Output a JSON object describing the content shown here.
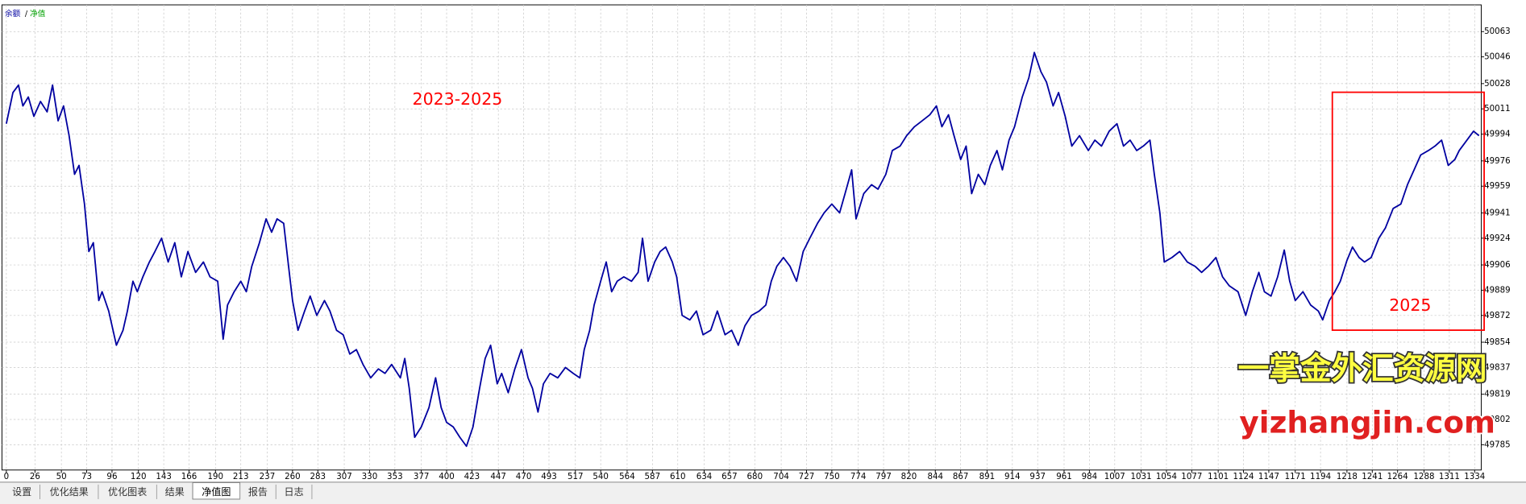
{
  "chart_data": {
    "type": "line",
    "legend": [
      {
        "label": "余额",
        "color": "#0000a0"
      },
      {
        "label": "净值",
        "color": "#00a000"
      }
    ],
    "legend_separator": "/",
    "x": [
      0,
      6,
      11,
      15,
      20,
      25,
      31,
      37,
      42,
      47,
      52,
      57,
      62,
      66,
      71,
      75,
      79,
      84,
      87,
      93,
      100,
      106,
      110,
      115,
      119,
      124,
      130,
      135,
      141,
      147,
      153,
      159,
      165,
      172,
      179,
      185,
      192,
      197,
      201,
      207,
      213,
      218,
      223,
      230,
      236,
      241,
      246,
      252,
      256,
      260,
      265,
      271,
      276,
      282,
      289,
      294,
      300,
      306,
      312,
      318,
      324,
      331,
      338,
      344,
      350,
      358,
      362,
      366,
      371,
      377,
      384,
      390,
      395,
      400,
      406,
      412,
      418,
      424,
      430,
      435,
      440,
      446,
      450,
      456,
      462,
      468,
      474,
      478,
      483,
      488,
      494,
      501,
      508,
      515,
      521,
      525,
      530,
      534,
      540,
      545,
      550,
      555,
      561,
      568,
      574,
      578,
      583,
      589,
      594,
      599,
      605,
      609,
      614,
      621,
      627,
      633,
      640,
      646,
      653,
      659,
      665,
      671,
      677,
      684,
      690,
      695,
      700,
      706,
      712,
      718,
      724,
      730,
      737,
      743,
      750,
      757,
      762,
      768,
      772,
      779,
      786,
      792,
      799,
      805,
      812,
      818,
      825,
      832,
      839,
      845,
      850,
      856,
      861,
      867,
      872,
      877,
      883,
      889,
      894,
      900,
      905,
      911,
      916,
      923,
      929,
      934,
      940,
      945,
      951,
      956,
      962,
      968,
      975,
      983,
      989,
      995,
      1002,
      1009,
      1015,
      1021,
      1027,
      1033,
      1039,
      1043,
      1048,
      1052,
      1059,
      1066,
      1073,
      1080,
      1086,
      1092,
      1099,
      1105,
      1111,
      1119,
      1126,
      1132,
      1138,
      1143,
      1149,
      1155,
      1161,
      1166,
      1171,
      1178,
      1185,
      1192,
      1196,
      1202,
      1207,
      1212,
      1218,
      1223,
      1229,
      1234,
      1240,
      1247,
      1253,
      1260,
      1267,
      1273,
      1279,
      1285,
      1292,
      1298,
      1304,
      1310,
      1316,
      1320,
      1327,
      1333,
      1338
    ],
    "series": [
      {
        "name": "余额",
        "color": "#0000a0",
        "values": [
          50001,
          50022,
          50027,
          50013,
          50019,
          50006,
          50016,
          50009,
          50027,
          50003,
          50013,
          49993,
          49967,
          49973,
          49947,
          49915,
          49921,
          49882,
          49888,
          49875,
          49852,
          49862,
          49875,
          49895,
          49888,
          49898,
          49908,
          49915,
          49924,
          49908,
          49921,
          49898,
          49915,
          49901,
          49908,
          49898,
          49895,
          49856,
          49879,
          49888,
          49895,
          49888,
          49905,
          49921,
          49937,
          49928,
          49937,
          49934,
          49908,
          49882,
          49862,
          49875,
          49885,
          49872,
          49882,
          49875,
          49862,
          49859,
          49846,
          49849,
          49839,
          49830,
          49836,
          49833,
          49839,
          49830,
          49843,
          49823,
          49790,
          49797,
          49810,
          49830,
          49810,
          49800,
          49797,
          49790,
          49784,
          49797,
          49823,
          49843,
          49852,
          49826,
          49833,
          49820,
          49836,
          49849,
          49830,
          49823,
          49807,
          49826,
          49833,
          49830,
          49837,
          49833,
          49830,
          49849,
          49862,
          49879,
          49895,
          49908,
          49888,
          49895,
          49898,
          49895,
          49901,
          49924,
          49895,
          49908,
          49915,
          49918,
          49908,
          49898,
          49872,
          49869,
          49875,
          49859,
          49862,
          49875,
          49859,
          49862,
          49852,
          49865,
          49872,
          49875,
          49879,
          49895,
          49905,
          49911,
          49905,
          49895,
          49915,
          49924,
          49934,
          49941,
          49947,
          49941,
          49954,
          49970,
          49937,
          49954,
          49960,
          49957,
          49967,
          49983,
          49986,
          49993,
          49999,
          50003,
          50007,
          50013,
          49999,
          50007,
          49993,
          49977,
          49986,
          49954,
          49967,
          49960,
          49973,
          49983,
          49970,
          49990,
          49999,
          50019,
          50032,
          50049,
          50036,
          50029,
          50013,
          50022,
          50006,
          49986,
          49993,
          49983,
          49990,
          49986,
          49996,
          50001,
          49986,
          49990,
          49983,
          49986,
          49990,
          49967,
          49941,
          49908,
          49911,
          49915,
          49908,
          49905,
          49901,
          49905,
          49911,
          49898,
          49892,
          49888,
          49872,
          49888,
          49901,
          49888,
          49885,
          49898,
          49916,
          49895,
          49882,
          49888,
          49879,
          49875,
          49869,
          49882,
          49888,
          49895,
          49909,
          49918,
          49911,
          49908,
          49911,
          49924,
          49931,
          49944,
          49947,
          49960,
          49970,
          49980,
          49983,
          49986,
          49990,
          49973,
          49977,
          49983,
          49990,
          49996,
          49993
        ]
      }
    ],
    "xlim": [
      -4,
      1340
    ],
    "xticks": [
      0,
      26,
      50,
      73,
      96,
      120,
      143,
      166,
      190,
      213,
      237,
      260,
      283,
      307,
      330,
      353,
      377,
      400,
      423,
      447,
      470,
      493,
      517,
      540,
      564,
      587,
      610,
      634,
      657,
      680,
      704,
      727,
      750,
      774,
      797,
      820,
      844,
      867,
      891,
      914,
      937,
      961,
      984,
      1007,
      1031,
      1054,
      1077,
      1101,
      1124,
      1147,
      1171,
      1194,
      1218,
      1241,
      1264,
      1288,
      1311,
      1334
    ],
    "ylim": [
      49768,
      50081
    ],
    "yticks": [
      49785,
      49802,
      49819,
      49837,
      49854,
      49872,
      49889,
      49906,
      49924,
      49941,
      49959,
      49976,
      49994,
      50011,
      50028,
      50046,
      50063
    ],
    "grid": true,
    "annotations": [
      "2023-2025",
      "2025"
    ],
    "annotation_color": "#ff0000",
    "watermark": [
      "一掌金外汇资源网",
      "yizhangjin.com"
    ]
  },
  "tabs": [
    "设置",
    "优化结果",
    "优化图表",
    "结果",
    "净值图",
    "报告",
    "日志"
  ],
  "selected_tab": 4
}
